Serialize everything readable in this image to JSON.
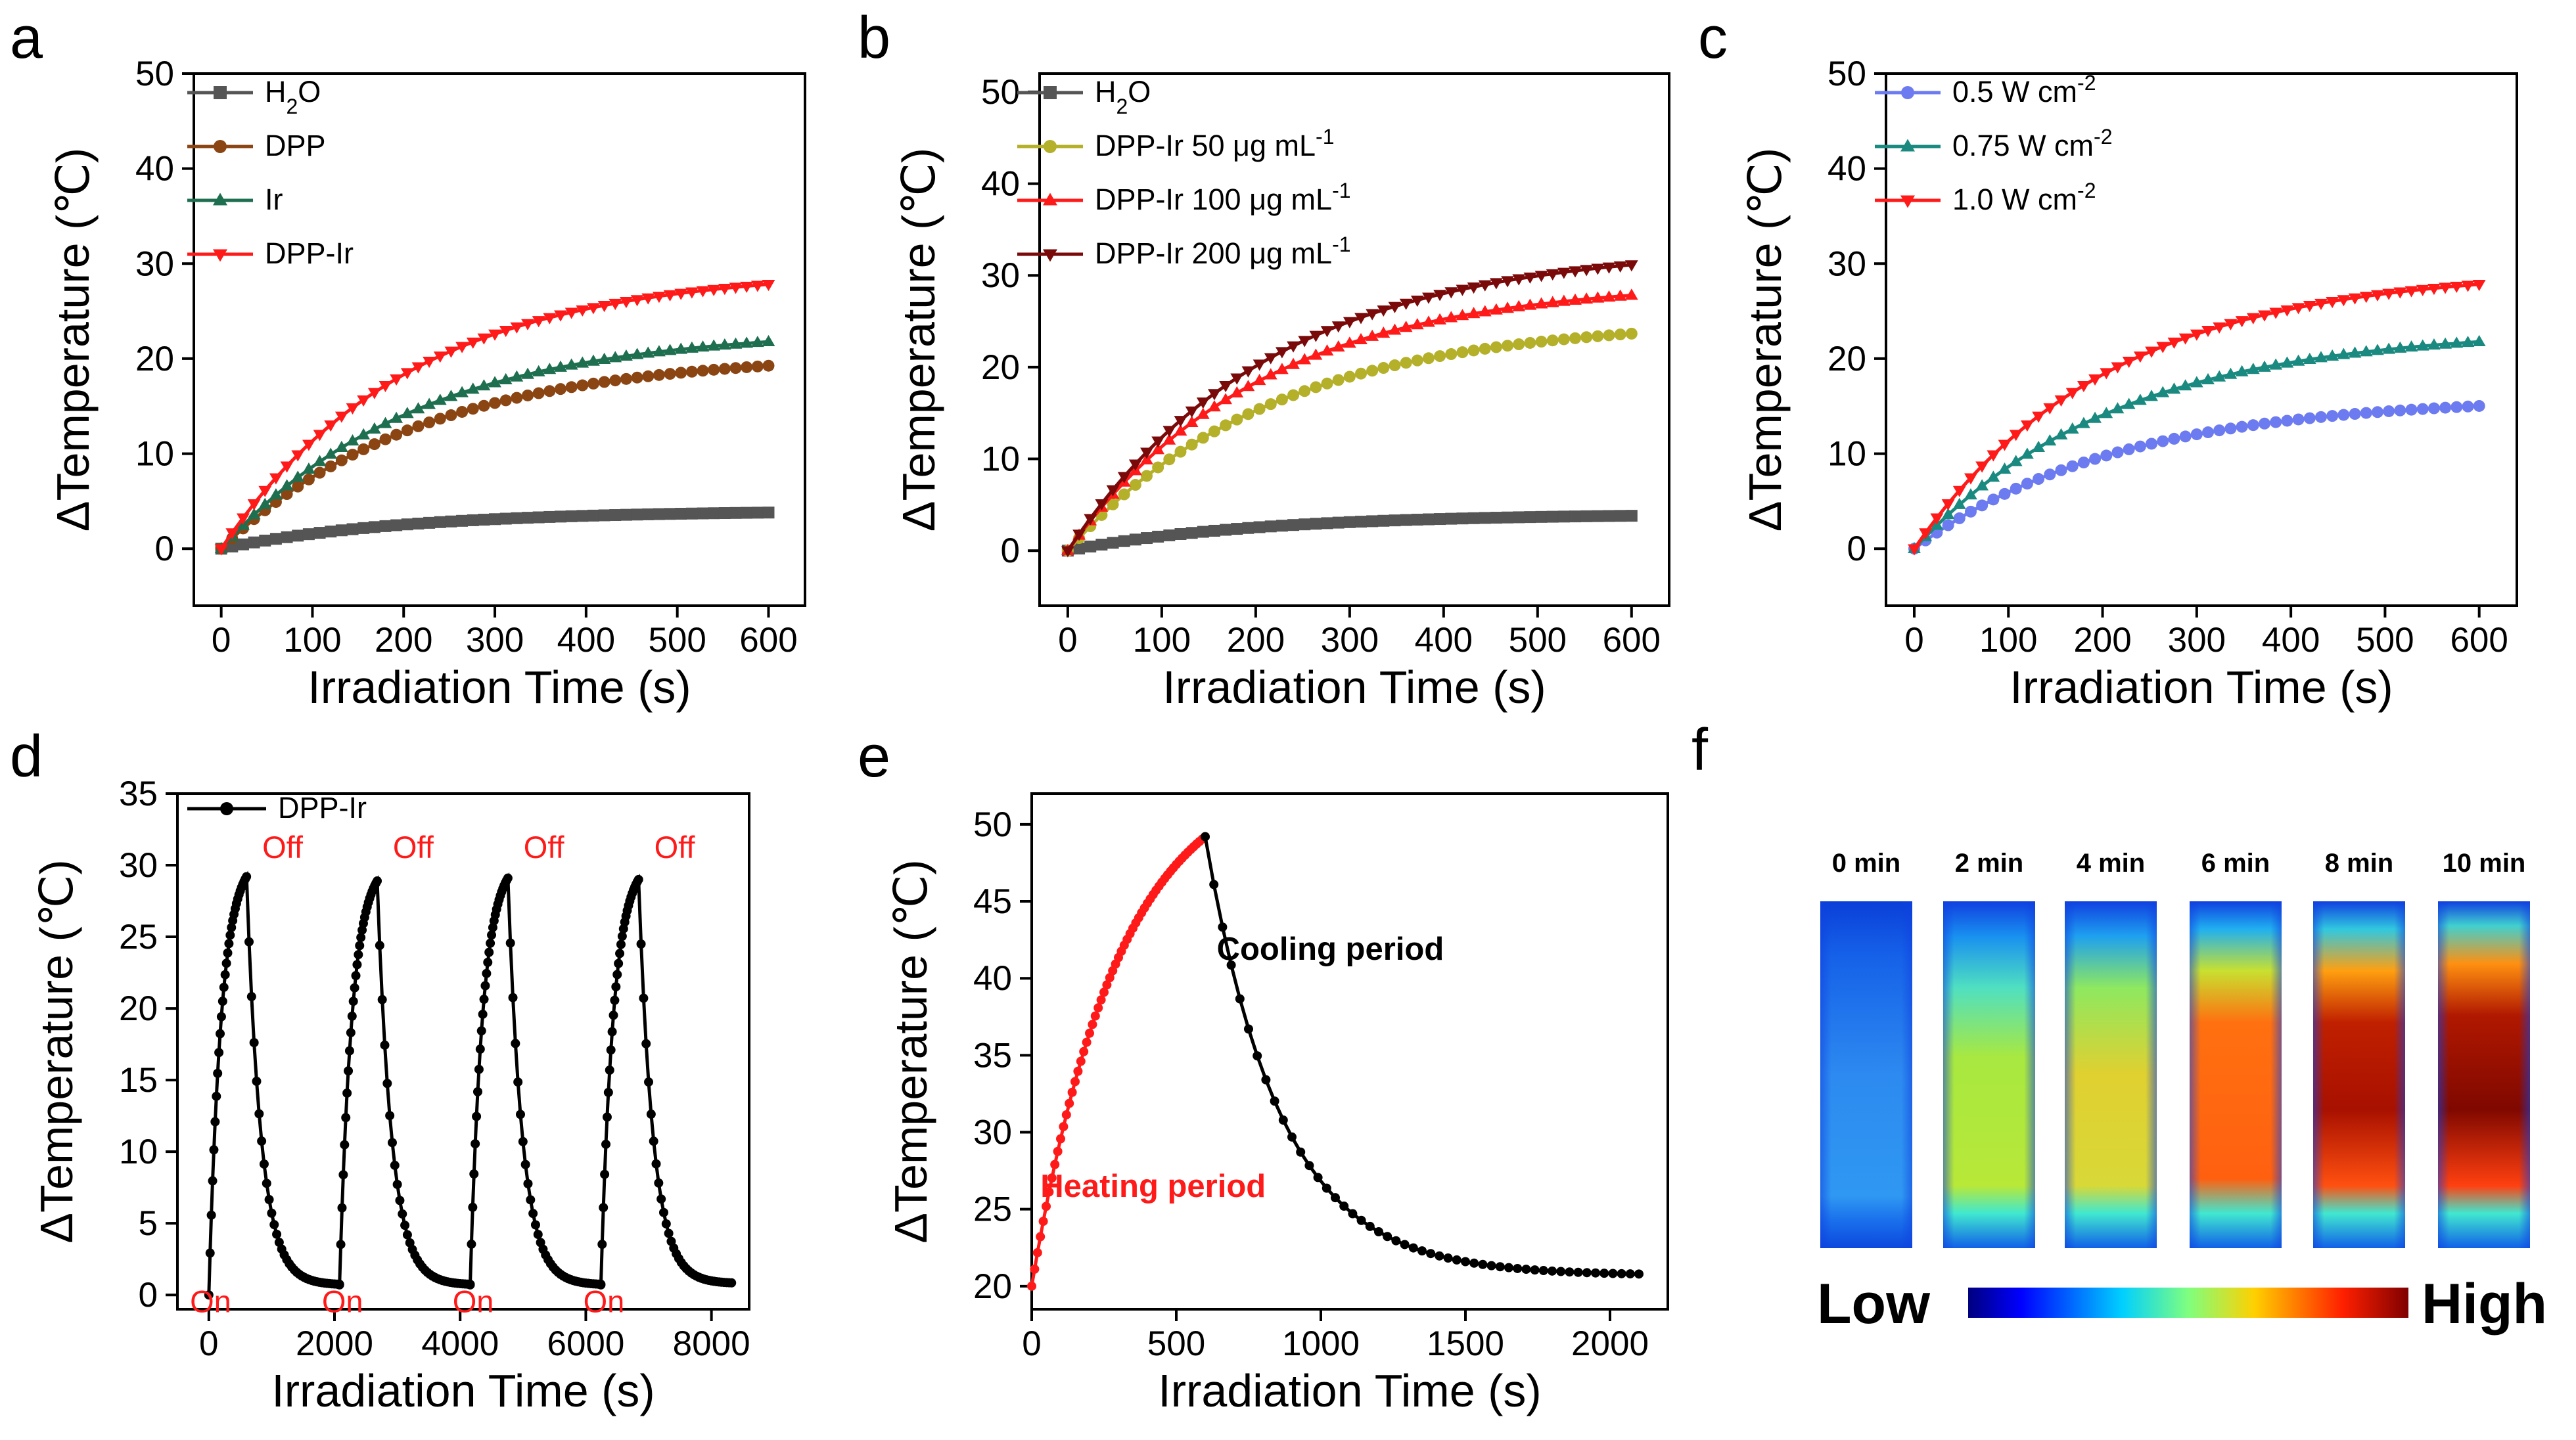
{
  "chart_data": [
    {
      "id": "a",
      "panel_letter": "a",
      "type": "line",
      "xlabel": "Irradiation Time (s)",
      "ylabel": "ΔTemperature (℃)",
      "xlim": [
        -30,
        640
      ],
      "ylim": [
        -6,
        50
      ],
      "xticks": [
        0,
        100,
        200,
        300,
        400,
        500,
        600
      ],
      "yticks": [
        0,
        10,
        20,
        30,
        40,
        50
      ],
      "legend_position": "top-left",
      "series": [
        {
          "name": "H₂O",
          "color": "#555555",
          "marker": "square",
          "kind": "exp",
          "A": 4.0,
          "tau": 200,
          "tmax": 600,
          "step": 12
        },
        {
          "name": "DPP",
          "color": "#8B4513",
          "marker": "circle",
          "kind": "exp",
          "A": 20.6,
          "tau": 220,
          "tmax": 600,
          "step": 12
        },
        {
          "name": "Ir",
          "color": "#1E6E50",
          "marker": "triangle-up",
          "kind": "exp",
          "A": 23.2,
          "tau": 215,
          "tmax": 600,
          "step": 12
        },
        {
          "name": "DPP-Ir",
          "color": "#FF1A1A",
          "marker": "triangle-down",
          "kind": "exp",
          "A": 29.4,
          "tau": 205,
          "tmax": 600,
          "step": 12
        }
      ]
    },
    {
      "id": "b",
      "panel_letter": "b",
      "type": "line",
      "xlabel": "Irradiation Time (s)",
      "ylabel": "ΔTemperature (℃)",
      "xlim": [
        -30,
        640
      ],
      "ylim": [
        -6,
        52
      ],
      "xticks": [
        0,
        100,
        200,
        300,
        400,
        500,
        600
      ],
      "yticks": [
        0,
        10,
        20,
        30,
        40,
        50
      ],
      "legend_position": "top-left",
      "series": [
        {
          "name": "H₂O",
          "color": "#555555",
          "marker": "square",
          "kind": "exp",
          "A": 4.0,
          "tau": 200,
          "tmax": 600,
          "step": 12
        },
        {
          "name": "DPP-Ir 50 μg mL⁻¹",
          "color": "#B5B02A",
          "marker": "circle",
          "kind": "exp",
          "A": 25.2,
          "tau": 215,
          "tmax": 600,
          "step": 12
        },
        {
          "name": "DPP-Ir 100 μg mL⁻¹",
          "color": "#FF1A1A",
          "marker": "triangle-up",
          "kind": "exp",
          "A": 29.4,
          "tau": 205,
          "tmax": 600,
          "step": 12
        },
        {
          "name": "DPP-Ir 200 μg mL⁻¹",
          "color": "#7A0A0A",
          "marker": "triangle-down",
          "kind": "exp",
          "A": 33.2,
          "tau": 215,
          "tmax": 600,
          "step": 12
        }
      ]
    },
    {
      "id": "c",
      "panel_letter": "c",
      "type": "line",
      "xlabel": "Irradiation Time (s)",
      "ylabel": "ΔTemperature (℃)",
      "xlim": [
        -30,
        640
      ],
      "ylim": [
        -6,
        50
      ],
      "xticks": [
        0,
        100,
        200,
        300,
        400,
        500,
        600
      ],
      "yticks": [
        0,
        10,
        20,
        30,
        40,
        50
      ],
      "legend_position": "top-left",
      "series": [
        {
          "name": "0.5 W cm⁻²",
          "color": "#6C7BF0",
          "marker": "circle",
          "kind": "exp",
          "A": 16.0,
          "tau": 215,
          "tmax": 600,
          "step": 12
        },
        {
          "name": "0.75 W cm⁻²",
          "color": "#1A8A80",
          "marker": "triangle-up",
          "kind": "exp",
          "A": 23.2,
          "tau": 215,
          "tmax": 600,
          "step": 12
        },
        {
          "name": "1.0 W cm⁻²",
          "color": "#FF1A1A",
          "marker": "triangle-down",
          "kind": "exp",
          "A": 29.4,
          "tau": 205,
          "tmax": 600,
          "step": 12
        }
      ]
    },
    {
      "id": "d",
      "panel_letter": "d",
      "type": "line",
      "xlabel": "Irradiation Time (s)",
      "ylabel": "ΔTemperature (℃)",
      "xlim": [
        -500,
        8600
      ],
      "ylim": [
        -1,
        35
      ],
      "xticks": [
        0,
        2000,
        4000,
        6000,
        8000
      ],
      "yticks": [
        0,
        5,
        10,
        15,
        20,
        25,
        30,
        35
      ],
      "legend_position": "top-left",
      "series": [
        {
          "name": "DPP-Ir",
          "color": "#000000",
          "marker": "circle",
          "kind": "cycles",
          "cycles": [
            {
              "start": 0,
              "base": 0.0,
              "peak": 29.2
            },
            {
              "start": 2080,
              "base": 0.7,
              "peak": 28.9
            },
            {
              "start": 4160,
              "base": 0.7,
              "peak": 29.1
            },
            {
              "start": 6240,
              "base": 0.7,
              "peak": 29.0
            }
          ],
          "heat_dur": 600,
          "cool_dur": 1480,
          "end_base": 0.8
        }
      ],
      "annotations": [
        {
          "text": "Off",
          "x": 850,
          "y": 30.5,
          "color": "#FF1A1A"
        },
        {
          "text": "Off",
          "x": 2930,
          "y": 30.5,
          "color": "#FF1A1A"
        },
        {
          "text": "Off",
          "x": 5010,
          "y": 30.5,
          "color": "#FF1A1A"
        },
        {
          "text": "Off",
          "x": 7090,
          "y": 30.5,
          "color": "#FF1A1A"
        },
        {
          "text": "On",
          "x": -300,
          "y": -1.2,
          "color": "#FF1A1A"
        },
        {
          "text": "On",
          "x": 1800,
          "y": -1.2,
          "color": "#FF1A1A"
        },
        {
          "text": "On",
          "x": 3880,
          "y": -1.2,
          "color": "#FF1A1A"
        },
        {
          "text": "On",
          "x": 5960,
          "y": -1.2,
          "color": "#FF1A1A"
        }
      ]
    },
    {
      "id": "e",
      "panel_letter": "e",
      "type": "line",
      "xlabel": "Irradiation Time (s)",
      "ylabel": "ΔTemperature (℃)",
      "xlim": [
        0,
        2200
      ],
      "ylim": [
        18.5,
        52
      ],
      "xticks": [
        0,
        500,
        1000,
        1500,
        2000
      ],
      "yticks": [
        20,
        25,
        30,
        35,
        40,
        45,
        50
      ],
      "series": [
        {
          "name": "Heating period",
          "color": "#FF1A1A",
          "marker": "circle",
          "kind": "heat",
          "T0": 20.0,
          "T1": 49.2,
          "tau": 300,
          "tmax": 600,
          "step": 10
        },
        {
          "name": "Cooling period",
          "color": "#000000",
          "marker": "circle",
          "kind": "cool",
          "Tstart": 49.2,
          "Tend": 20.7,
          "tau": 260,
          "tstart": 600,
          "tmax": 2100,
          "step": 30
        }
      ],
      "annotations": [
        {
          "text": "Cooling period",
          "x": 640,
          "y": 41.2,
          "color": "#000000"
        },
        {
          "text": "Heating period",
          "x": 30,
          "y": 25.8,
          "color": "#FF1A1A"
        }
      ]
    }
  ],
  "thermal": {
    "panel_letter": "f",
    "time_labels": [
      "0 min",
      "2 min",
      "4 min",
      "6 min",
      "8 min",
      "10 min"
    ],
    "scale_low": "Low",
    "scale_high": "High"
  }
}
